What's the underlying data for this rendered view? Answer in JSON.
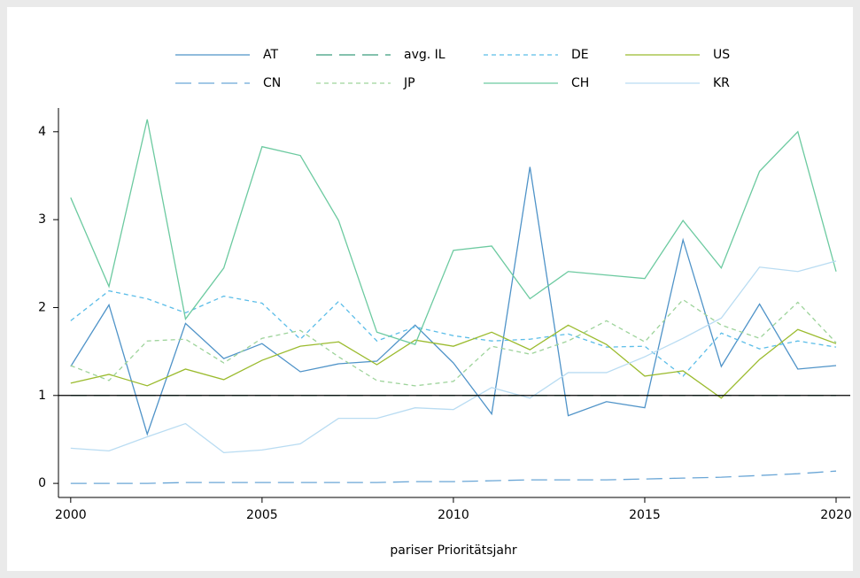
{
  "chart_data": {
    "type": "line",
    "x_label": "pariser Prioritätsjahr",
    "x": [
      2000,
      2001,
      2002,
      2003,
      2004,
      2005,
      2006,
      2007,
      2008,
      2009,
      2010,
      2011,
      2012,
      2013,
      2014,
      2015,
      2016,
      2017,
      2018,
      2019,
      2020
    ],
    "xlim": [
      1999.68,
      2020.37
    ],
    "xticks": [
      2000,
      2005,
      2010,
      2015,
      2020
    ],
    "ylim": [
      -0.16,
      4.27
    ],
    "yticks": [
      0,
      1,
      2,
      3,
      4
    ],
    "reference_line": 1,
    "reference_color": "#000000",
    "grid": false,
    "legend": "top",
    "series": [
      {
        "name": "AT",
        "color": "#4f93c8",
        "dash": "solid",
        "values": [
          1.33,
          2.03,
          0.56,
          1.82,
          1.42,
          1.59,
          1.27,
          1.36,
          1.39,
          1.8,
          1.37,
          0.79,
          3.6,
          0.77,
          0.93,
          0.86,
          2.77,
          1.33,
          2.04,
          1.3,
          1.34
        ]
      },
      {
        "name": "avg. IL",
        "color": "#3a9e7e",
        "dash": "long",
        "values": [
          1,
          1,
          1,
          1,
          1,
          1,
          1,
          1,
          1,
          1,
          1,
          1,
          1,
          1,
          1,
          1,
          1,
          1,
          1,
          1,
          1
        ]
      },
      {
        "name": "DE",
        "color": "#5bbde8",
        "dash": "short",
        "values": [
          1.85,
          2.19,
          2.1,
          1.94,
          2.13,
          2.05,
          1.64,
          2.07,
          1.62,
          1.78,
          1.68,
          1.62,
          1.64,
          1.7,
          1.55,
          1.56,
          1.22,
          1.71,
          1.53,
          1.62,
          1.55
        ]
      },
      {
        "name": "US",
        "color": "#9bbb2e",
        "dash": "solid",
        "values": [
          1.14,
          1.24,
          1.11,
          1.3,
          1.18,
          1.4,
          1.56,
          1.61,
          1.35,
          1.63,
          1.56,
          1.72,
          1.52,
          1.8,
          1.58,
          1.22,
          1.28,
          0.97,
          1.41,
          1.75,
          1.59
        ]
      },
      {
        "name": "CN",
        "color": "#6aa6d6",
        "dash": "long",
        "values": [
          0.0,
          0.0,
          0.0,
          0.01,
          0.01,
          0.01,
          0.01,
          0.01,
          0.01,
          0.02,
          0.02,
          0.03,
          0.04,
          0.04,
          0.04,
          0.05,
          0.06,
          0.07,
          0.09,
          0.11,
          0.14
        ]
      },
      {
        "name": "JP",
        "color": "#9dd39a",
        "dash": "short",
        "values": [
          1.34,
          1.17,
          1.62,
          1.64,
          1.37,
          1.65,
          1.74,
          1.44,
          1.17,
          1.11,
          1.16,
          1.56,
          1.47,
          1.62,
          1.85,
          1.61,
          2.09,
          1.8,
          1.65,
          2.06,
          1.6
        ]
      },
      {
        "name": "CH",
        "color": "#6ccaa0",
        "dash": "solid",
        "values": [
          3.25,
          2.24,
          4.14,
          1.87,
          2.45,
          3.83,
          3.73,
          2.99,
          1.72,
          1.58,
          2.65,
          2.7,
          2.1,
          2.41,
          2.37,
          2.33,
          2.99,
          2.45,
          3.55,
          4.0,
          2.41
        ]
      },
      {
        "name": "KR",
        "color": "#b9dcf2",
        "dash": "solid",
        "values": [
          0.4,
          0.37,
          0.53,
          0.68,
          0.35,
          0.38,
          0.45,
          0.74,
          0.74,
          0.86,
          0.84,
          1.09,
          0.97,
          1.26,
          1.26,
          1.44,
          1.65,
          1.88,
          2.46,
          2.41,
          2.53
        ]
      }
    ]
  }
}
